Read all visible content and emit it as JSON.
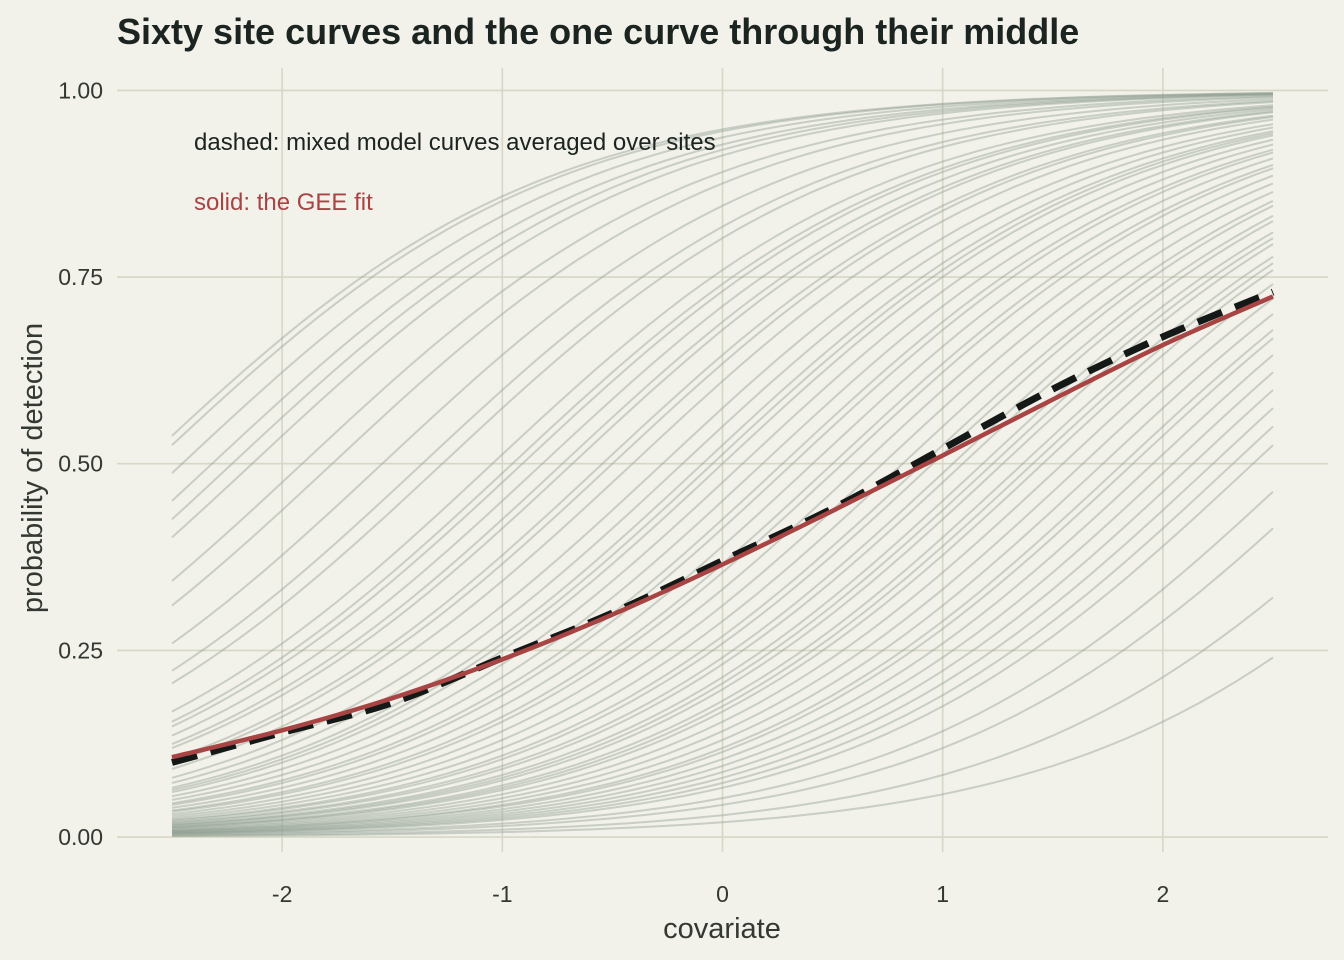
{
  "chart_data": {
    "type": "line",
    "title": "Sixty site curves and the one curve through their middle",
    "xlabel": "covariate",
    "ylabel": "probability of detection",
    "xlim": [
      -2.75,
      2.75
    ],
    "ylim": [
      -0.02,
      1.03
    ],
    "x_ticks": [
      -2,
      -1,
      0,
      1,
      2
    ],
    "x_tick_labels": [
      "-2",
      "-1",
      "0",
      "1",
      "2"
    ],
    "y_ticks": [
      0,
      0.25,
      0.5,
      0.75,
      1
    ],
    "y_tick_labels": [
      "0.00",
      "0.25",
      "0.50",
      "0.75",
      "1.00"
    ],
    "grid": true,
    "x_range": [
      -2.5,
      2.5
    ],
    "annotations": {
      "dashed_note": "dashed: mixed model curves averaged over sites",
      "solid_note": "solid: the GEE fit"
    },
    "colors": {
      "background": "#f2f1ea",
      "grid": "#d6d7c4",
      "site_curves": "#8a9a8c",
      "mixed_model": "#141816",
      "gee": "#a84444"
    },
    "site_curves": {
      "model": "logistic",
      "count": 60,
      "slope": 1.1,
      "intercepts": [
        2.55,
        2.85,
        2.9,
        2.7,
        2.45,
        2.35,
        2.1,
        1.95,
        1.7,
        1.5,
        1.4,
        1.15,
        1.05,
        1.0,
        0.9,
        0.8,
        0.75,
        0.6,
        0.55,
        0.45,
        0.3,
        0.2,
        0.1,
        0.05,
        0.0,
        -0.1,
        -0.2,
        -0.3,
        -0.35,
        -0.45,
        -0.55,
        -0.6,
        -0.7,
        -0.8,
        -0.9,
        -1.0,
        -1.05,
        -1.15,
        -1.2,
        -1.3,
        -1.35,
        -1.4,
        -1.5,
        -1.55,
        -1.6,
        -1.7,
        -1.8,
        -1.9,
        -2.0,
        -2.05,
        -2.15,
        -2.25,
        -2.35,
        -2.45,
        -2.55,
        -2.65,
        -2.9,
        -3.1,
        -3.5,
        -3.9
      ]
    },
    "series": [
      {
        "name": "dashed: mixed model curves averaged over sites",
        "x": [
          -2.5,
          -2.0,
          -1.5,
          -1.0,
          -0.5,
          0.0,
          0.5,
          1.0,
          1.5,
          2.0,
          2.5
        ],
        "y": [
          0.1,
          0.14,
          0.18,
          0.24,
          0.3,
          0.37,
          0.44,
          0.52,
          0.6,
          0.67,
          0.73
        ]
      },
      {
        "name": "solid: the GEE fit",
        "x": [
          -2.5,
          -2.0,
          -1.5,
          -1.0,
          -0.5,
          0.0,
          0.5,
          1.0,
          1.5,
          2.0,
          2.5
        ],
        "y": [
          0.107,
          0.143,
          0.186,
          0.238,
          0.298,
          0.365,
          0.437,
          0.511,
          0.586,
          0.659,
          0.724
        ]
      }
    ]
  }
}
